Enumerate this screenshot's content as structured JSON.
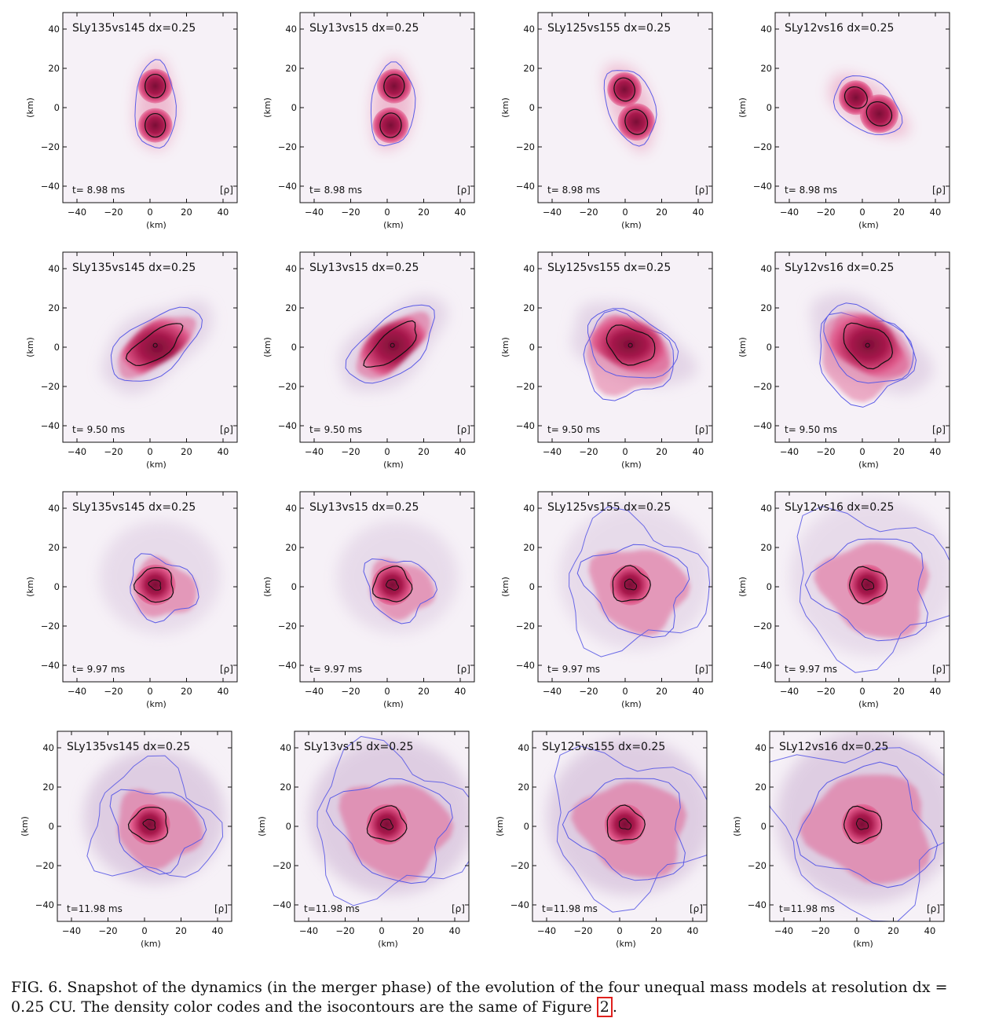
{
  "panels": {
    "models": [
      "SLy135vs145 dx=0.25",
      "SLy13vs15 dx=0.25",
      "SLy125vs155 dx=0.25",
      "SLy12vs16 dx=0.25"
    ],
    "times": [
      "t= 8.98 ms",
      "t= 9.50 ms",
      "t= 9.97 ms",
      "t=11.98 ms"
    ],
    "field_label": "[ρ]",
    "xlabel": "(km)",
    "ylabel": "(km)",
    "xticks": [
      "−40",
      "−20",
      "0",
      "20",
      "40"
    ],
    "yticks": [
      "40",
      "20",
      "0",
      "−20",
      "−40"
    ]
  },
  "colors": {
    "background": "#f6f1f7",
    "haze": "#d7c2dc",
    "mid": "#e0588a",
    "core": "#a8184c",
    "center": "#7a0e36",
    "blue_contour": "#5b5be6",
    "black_contour": "#111111"
  },
  "caption": {
    "text": "FIG. 6. Snapshot of the dynamics (in the merger phase) of the evolution of the four unequal mass models at resolution dx = 0.25 CU. The density color codes and the isocontours are the same of Figure ",
    "ref": "2",
    "end": "."
  }
}
